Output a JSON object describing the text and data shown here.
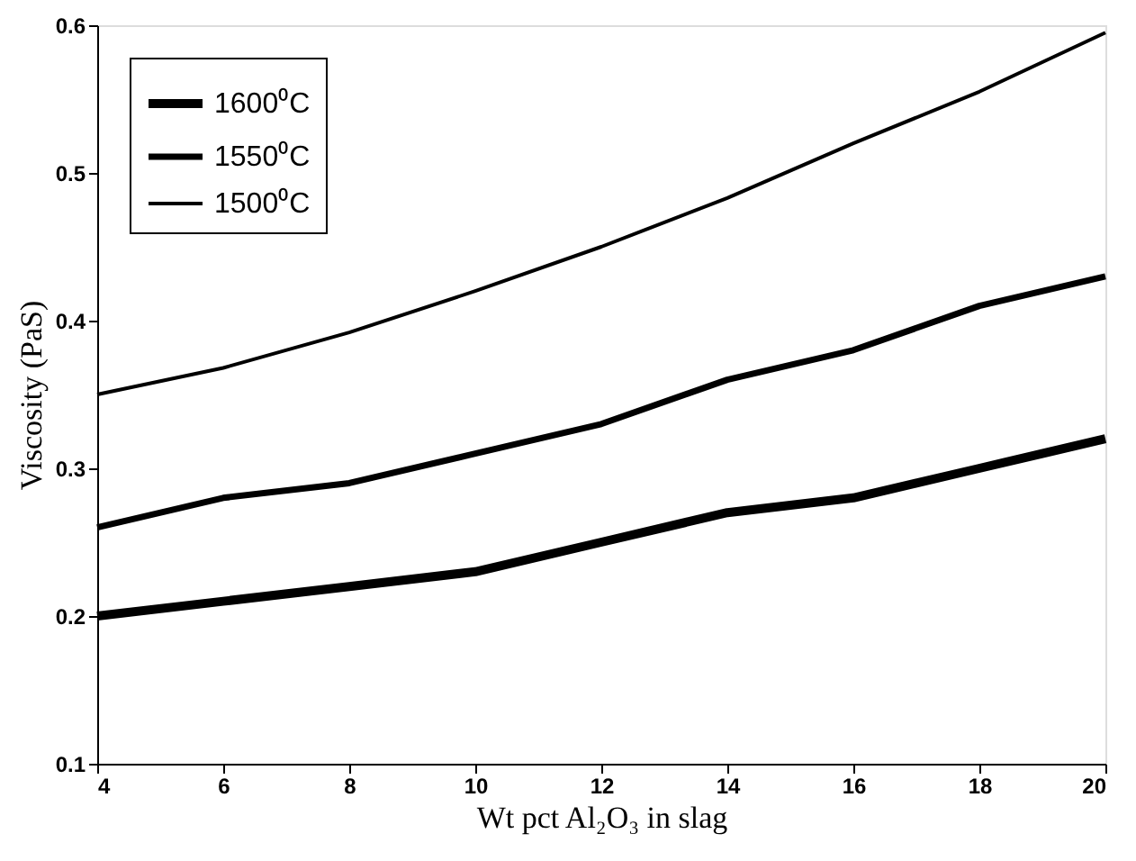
{
  "chart_data": {
    "type": "line",
    "xlabel": "Wt pct Al₂O₃ in slag",
    "ylabel": "Viscosity (PaS)",
    "x": [
      4,
      6,
      8,
      10,
      12,
      14,
      16,
      18,
      20
    ],
    "series": [
      {
        "name": "1600⁰C",
        "color": "#000000",
        "values": [
          0.2,
          0.21,
          0.22,
          0.23,
          0.25,
          0.27,
          0.28,
          0.3,
          0.32
        ]
      },
      {
        "name": "1550⁰C",
        "color": "#000000",
        "values": [
          0.26,
          0.28,
          0.29,
          0.31,
          0.33,
          0.36,
          0.38,
          0.41,
          0.43
        ]
      },
      {
        "name": "1500⁰C",
        "color": "#000000",
        "values": [
          0.35,
          0.368,
          0.392,
          0.42,
          0.45,
          0.483,
          0.52,
          0.555,
          0.595
        ]
      }
    ],
    "xlim": [
      4,
      20
    ],
    "xticks": [
      4,
      6,
      8,
      10,
      12,
      14,
      16,
      18,
      20
    ],
    "ylim": [
      0.1,
      0.6
    ],
    "yticks": [
      0.1,
      0.2,
      0.3,
      0.4,
      0.5,
      0.6
    ],
    "grid": false,
    "legend": "top left",
    "marker": "none",
    "line_style": "solid"
  }
}
